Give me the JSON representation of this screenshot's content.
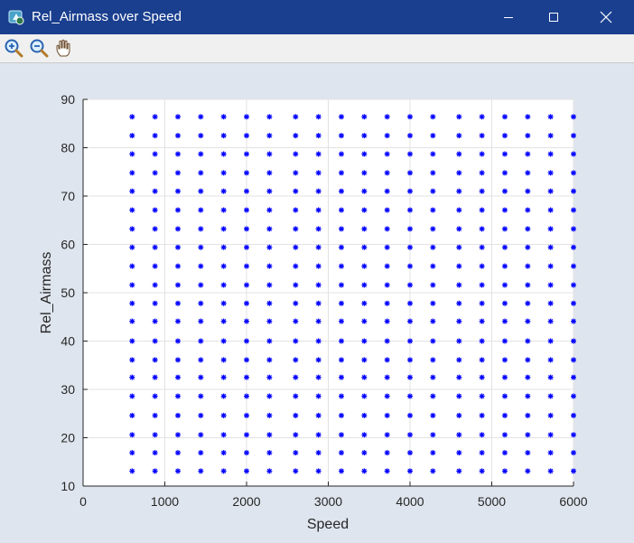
{
  "window": {
    "title": "Rel_Airmass over Speed",
    "controls": {
      "minimize": "minimize",
      "maximize": "maximize",
      "close": "close"
    }
  },
  "toolbar": {
    "tools": [
      {
        "name": "zoom-in-icon"
      },
      {
        "name": "zoom-out-icon"
      },
      {
        "name": "pan-hand-icon"
      }
    ]
  },
  "colors": {
    "titlebar": "#1a3f8f",
    "marker": "#0000ff",
    "background": "#dfe5ee"
  },
  "chart_data": {
    "type": "scatter",
    "marker": "asterisk",
    "xlabel": "Speed",
    "ylabel": "Rel_Airmass",
    "xlim": [
      0,
      6000
    ],
    "ylim": [
      10,
      90
    ],
    "xticks": [
      0,
      1000,
      2000,
      3000,
      4000,
      5000,
      6000
    ],
    "yticks": [
      10,
      20,
      30,
      40,
      50,
      60,
      70,
      80,
      90
    ],
    "grid": true,
    "x_values": [
      600,
      880,
      1160,
      1440,
      1720,
      2000,
      2280,
      2600,
      2880,
      3160,
      3440,
      3720,
      4000,
      4280,
      4600,
      4880,
      5160,
      5440,
      5720,
      6000
    ],
    "y_values": [
      13.1,
      16.9,
      20.6,
      24.6,
      28.6,
      32.5,
      36.1,
      40.0,
      44.1,
      47.8,
      51.6,
      55.5,
      59.4,
      63.2,
      67.1,
      71.0,
      74.8,
      78.7,
      82.5,
      86.4
    ]
  }
}
